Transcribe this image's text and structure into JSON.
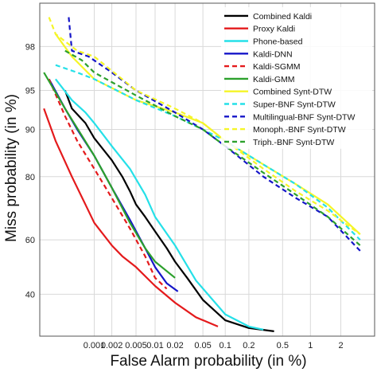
{
  "chart_data": {
    "type": "line",
    "xlabel": "False Alarm probability (in %)",
    "ylabel": "Miss probability (in %)",
    "x_tick_labels": [
      "0.001",
      "0.002",
      "0.005",
      "0.01",
      "0.02",
      "0.05",
      "0.1",
      "0.2",
      "0.5",
      "1",
      "2"
    ],
    "y_tick_labels": [
      "40",
      "60",
      "80",
      "90",
      "95",
      "98"
    ],
    "x_ticks": [
      0.001,
      0.002,
      0.005,
      0.01,
      0.02,
      0.05,
      0.1,
      0.2,
      0.5,
      1,
      2
    ],
    "y_ticks": [
      40,
      60,
      80,
      90,
      95,
      98
    ],
    "xlim": [
      0.0001,
      4
    ],
    "ylim": [
      26,
      99.3
    ],
    "scale": "normal-deviate (DET)",
    "grid": true,
    "legend_position": "top-right",
    "series": [
      {
        "name": "Combined Kaldi",
        "color": "#000000",
        "dash": "solid",
        "points": [
          [
            0.0003,
            95
          ],
          [
            0.0004,
            93
          ],
          [
            0.0007,
            91
          ],
          [
            0.001,
            88.5
          ],
          [
            0.002,
            84
          ],
          [
            0.003,
            80
          ],
          [
            0.004,
            76
          ],
          [
            0.005,
            72
          ],
          [
            0.007,
            68
          ],
          [
            0.01,
            63
          ],
          [
            0.015,
            57
          ],
          [
            0.02,
            52
          ],
          [
            0.03,
            46
          ],
          [
            0.05,
            38
          ],
          [
            0.1,
            31
          ],
          [
            0.2,
            28.5
          ],
          [
            0.4,
            27.5
          ]
        ]
      },
      {
        "name": "Proxy Kaldi",
        "color": "#e41a1c",
        "dash": "solid",
        "points": [
          [
            0.00012,
            93
          ],
          [
            0.0002,
            88
          ],
          [
            0.0004,
            80
          ],
          [
            0.0007,
            72
          ],
          [
            0.001,
            66
          ],
          [
            0.002,
            58
          ],
          [
            0.003,
            54
          ],
          [
            0.005,
            50
          ],
          [
            0.01,
            43
          ],
          [
            0.02,
            37
          ],
          [
            0.04,
            32
          ],
          [
            0.08,
            29
          ]
        ]
      },
      {
        "name": "Phone-based",
        "color": "#25e0e8",
        "dash": "solid",
        "points": [
          [
            0.0002,
            96
          ],
          [
            0.0004,
            94
          ],
          [
            0.0007,
            92.5
          ],
          [
            0.001,
            91
          ],
          [
            0.002,
            87
          ],
          [
            0.004,
            82
          ],
          [
            0.007,
            75
          ],
          [
            0.01,
            68
          ],
          [
            0.02,
            58
          ],
          [
            0.04,
            45
          ],
          [
            0.1,
            33
          ],
          [
            0.2,
            29
          ],
          [
            0.3,
            28
          ]
        ]
      },
      {
        "name": "Kaldi-DNN",
        "color": "#1515c8",
        "dash": "solid",
        "points": [
          [
            0.00015,
            96
          ],
          [
            0.0003,
            93
          ],
          [
            0.0005,
            90
          ],
          [
            0.001,
            85
          ],
          [
            0.002,
            77
          ],
          [
            0.004,
            67
          ],
          [
            0.007,
            57
          ],
          [
            0.01,
            50
          ],
          [
            0.015,
            44
          ],
          [
            0.022,
            41
          ]
        ]
      },
      {
        "name": "Kaldi-SGMM",
        "color": "#e41a1c",
        "dash": "dashed",
        "points": [
          [
            0.00015,
            96
          ],
          [
            0.0003,
            92
          ],
          [
            0.0005,
            88
          ],
          [
            0.001,
            82
          ],
          [
            0.002,
            74
          ],
          [
            0.004,
            64
          ],
          [
            0.007,
            54
          ],
          [
            0.01,
            46
          ],
          [
            0.015,
            42
          ]
        ]
      },
      {
        "name": "Kaldi-GMM",
        "color": "#2ca02c",
        "dash": "solid",
        "points": [
          [
            0.00012,
            96.5
          ],
          [
            0.0003,
            93
          ],
          [
            0.0006,
            89
          ],
          [
            0.001,
            85
          ],
          [
            0.002,
            77
          ],
          [
            0.004,
            66
          ],
          [
            0.007,
            57
          ],
          [
            0.01,
            52
          ],
          [
            0.02,
            46
          ]
        ]
      },
      {
        "name": "Combined Synt-DTW",
        "color": "#f5f528",
        "dash": "solid",
        "points": [
          [
            0.0002,
            98.5
          ],
          [
            0.0004,
            97.5
          ],
          [
            0.001,
            96
          ],
          [
            0.005,
            94
          ],
          [
            0.02,
            92.5
          ],
          [
            0.05,
            91
          ],
          [
            0.1,
            88
          ],
          [
            0.3,
            83
          ],
          [
            0.7,
            78
          ],
          [
            1.5,
            72
          ],
          [
            3,
            62
          ]
        ]
      },
      {
        "name": "Super-BNF Synt-DTW",
        "color": "#25e0e8",
        "dash": "dashed",
        "points": [
          [
            0.0002,
            97
          ],
          [
            0.0005,
            96.5
          ],
          [
            0.001,
            96
          ],
          [
            0.005,
            94
          ],
          [
            0.02,
            92
          ],
          [
            0.05,
            90
          ],
          [
            0.1,
            88
          ],
          [
            0.3,
            83
          ],
          [
            0.7,
            78
          ],
          [
            1.5,
            71
          ],
          [
            3,
            60
          ]
        ]
      },
      {
        "name": "Multilingual-BNF Synt-DTW",
        "color": "#1515c8",
        "dash": "dashed",
        "points": [
          [
            0.00035,
            99
          ],
          [
            0.0004,
            97.8
          ],
          [
            0.0008,
            97.5
          ],
          [
            0.002,
            96.5
          ],
          [
            0.005,
            95
          ],
          [
            0.02,
            92.5
          ],
          [
            0.05,
            90
          ],
          [
            0.1,
            87
          ],
          [
            0.3,
            80
          ],
          [
            0.7,
            74
          ],
          [
            1.5,
            68
          ],
          [
            3,
            56
          ]
        ]
      },
      {
        "name": "Monoph.-BNF Synt-DTW",
        "color": "#f5f528",
        "dash": "dashed",
        "points": [
          [
            0.00015,
            99
          ],
          [
            0.0002,
            98.5
          ],
          [
            0.0005,
            97.8
          ],
          [
            0.001,
            97.5
          ],
          [
            0.005,
            95
          ],
          [
            0.02,
            93
          ],
          [
            0.05,
            91
          ],
          [
            0.1,
            88
          ],
          [
            0.3,
            82
          ],
          [
            0.7,
            76
          ],
          [
            1.5,
            70
          ],
          [
            3,
            62
          ]
        ]
      },
      {
        "name": "Triph.-BNF Synt-DTW",
        "color": "#2ca02c",
        "dash": "dashed",
        "points": [
          [
            0.0003,
            97.8
          ],
          [
            0.0006,
            97.3
          ],
          [
            0.001,
            96.5
          ],
          [
            0.005,
            94.5
          ],
          [
            0.02,
            92
          ],
          [
            0.05,
            90
          ],
          [
            0.1,
            87
          ],
          [
            0.3,
            81
          ],
          [
            0.7,
            75
          ],
          [
            1.5,
            68
          ],
          [
            3,
            58
          ]
        ]
      }
    ]
  }
}
